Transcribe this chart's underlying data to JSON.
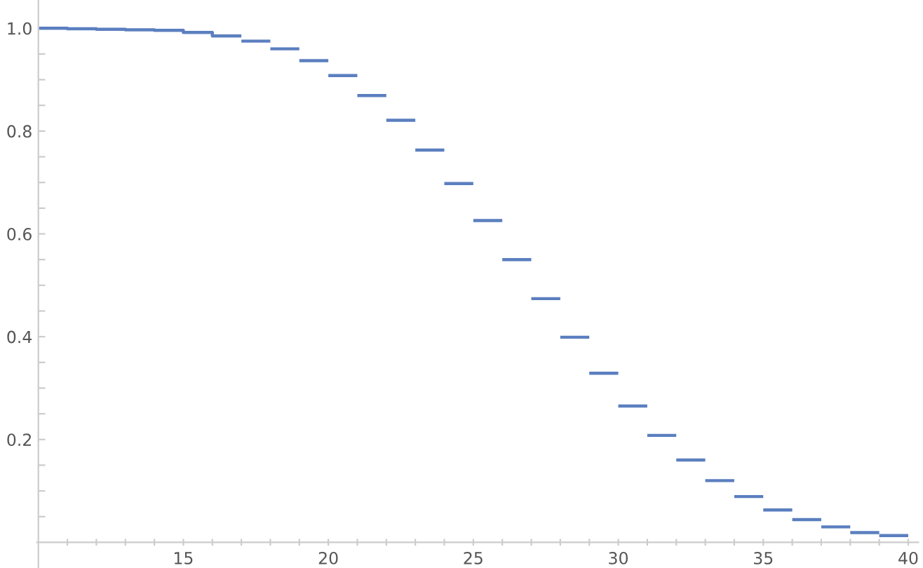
{
  "chart_data": {
    "type": "line",
    "series": [
      {
        "color": "#5b7fbf",
        "x": [
          10,
          11,
          11,
          12,
          12,
          13,
          13,
          14,
          14,
          15,
          15,
          16,
          16,
          17
        ],
        "values": [
          1.0,
          1.0,
          0.999,
          0.999,
          0.998,
          0.998,
          0.997,
          0.997,
          0.996,
          0.996,
          0.992,
          0.992,
          0.985,
          0.985
        ]
      },
      {
        "color": "#5b7fbf",
        "x": [
          17,
          18
        ],
        "values": [
          0.975,
          0.975
        ]
      },
      {
        "color": "#5b7fbf",
        "x": [
          18,
          19
        ],
        "values": [
          0.96,
          0.96
        ]
      },
      {
        "color": "#5b7fbf",
        "x": [
          19,
          20
        ],
        "values": [
          0.937,
          0.937
        ]
      },
      {
        "color": "#5b7fbf",
        "x": [
          20,
          21
        ],
        "values": [
          0.908,
          0.908
        ]
      },
      {
        "color": "#5b7fbf",
        "x": [
          21,
          22
        ],
        "values": [
          0.869,
          0.869
        ]
      },
      {
        "color": "#5b7fbf",
        "x": [
          22,
          23
        ],
        "values": [
          0.821,
          0.821
        ]
      },
      {
        "color": "#5b7fbf",
        "x": [
          23,
          24
        ],
        "values": [
          0.763,
          0.763
        ]
      },
      {
        "color": "#5b7fbf",
        "x": [
          24,
          25
        ],
        "values": [
          0.698,
          0.698
        ]
      },
      {
        "color": "#5b7fbf",
        "x": [
          25,
          26
        ],
        "values": [
          0.626,
          0.626
        ]
      },
      {
        "color": "#5b7fbf",
        "x": [
          26,
          27
        ],
        "values": [
          0.55,
          0.55
        ]
      },
      {
        "color": "#5b7fbf",
        "x": [
          27,
          28
        ],
        "values": [
          0.474,
          0.474
        ]
      },
      {
        "color": "#5b7fbf",
        "x": [
          28,
          29
        ],
        "values": [
          0.399,
          0.399
        ]
      },
      {
        "color": "#5b7fbf",
        "x": [
          29,
          30
        ],
        "values": [
          0.329,
          0.329
        ]
      },
      {
        "color": "#5b7fbf",
        "x": [
          30,
          31
        ],
        "values": [
          0.265,
          0.265
        ]
      },
      {
        "color": "#5b7fbf",
        "x": [
          31,
          32
        ],
        "values": [
          0.208,
          0.208
        ]
      },
      {
        "color": "#5b7fbf",
        "x": [
          32,
          33
        ],
        "values": [
          0.16,
          0.16
        ]
      },
      {
        "color": "#5b7fbf",
        "x": [
          33,
          34
        ],
        "values": [
          0.12,
          0.12
        ]
      },
      {
        "color": "#5b7fbf",
        "x": [
          34,
          35
        ],
        "values": [
          0.089,
          0.089
        ]
      },
      {
        "color": "#5b7fbf",
        "x": [
          35,
          36
        ],
        "values": [
          0.063,
          0.063
        ]
      },
      {
        "color": "#5b7fbf",
        "x": [
          36,
          37
        ],
        "values": [
          0.044,
          0.044
        ]
      },
      {
        "color": "#5b7fbf",
        "x": [
          37,
          38
        ],
        "values": [
          0.03,
          0.03
        ]
      },
      {
        "color": "#5b7fbf",
        "x": [
          38,
          39
        ],
        "values": [
          0.019,
          0.019
        ]
      },
      {
        "color": "#5b7fbf",
        "x": [
          39,
          40
        ],
        "values": [
          0.013,
          0.013
        ]
      }
    ],
    "xlim": [
      9.95,
      40.35
    ],
    "ylim": [
      -0.05,
      1.055
    ],
    "xticks": [
      {
        "value": 11,
        "label": null
      },
      {
        "value": 12,
        "label": null
      },
      {
        "value": 13,
        "label": null
      },
      {
        "value": 14,
        "label": null
      },
      15,
      {
        "value": 16,
        "label": null
      },
      {
        "value": 17,
        "label": null
      },
      {
        "value": 18,
        "label": null
      },
      {
        "value": 19,
        "label": null
      },
      20,
      {
        "value": 21,
        "label": null
      },
      {
        "value": 22,
        "label": null
      },
      {
        "value": 23,
        "label": null
      },
      {
        "value": 24,
        "label": null
      },
      25,
      {
        "value": 26,
        "label": null
      },
      {
        "value": 27,
        "label": null
      },
      {
        "value": 28,
        "label": null
      },
      {
        "value": 29,
        "label": null
      },
      30,
      {
        "value": 31,
        "label": null
      },
      {
        "value": 32,
        "label": null
      },
      {
        "value": 33,
        "label": null
      },
      {
        "value": 34,
        "label": null
      },
      35,
      {
        "value": 36,
        "label": null
      },
      {
        "value": 37,
        "label": null
      },
      {
        "value": 38,
        "label": null
      },
      {
        "value": 39,
        "label": null
      },
      40
    ],
    "yticks": [
      {
        "value": 0.05,
        "label": null
      },
      {
        "value": 0.1,
        "label": null
      },
      {
        "value": 0.15,
        "label": null
      },
      0.2,
      {
        "value": 0.25,
        "label": null
      },
      {
        "value": 0.3,
        "label": null
      },
      {
        "value": 0.35,
        "label": null
      },
      0.4,
      {
        "value": 0.45,
        "label": null
      },
      {
        "value": 0.5,
        "label": null
      },
      {
        "value": 0.55,
        "label": null
      },
      0.6,
      {
        "value": 0.65,
        "label": null
      },
      {
        "value": 0.7,
        "label": null
      },
      {
        "value": 0.75,
        "label": null
      },
      0.8,
      {
        "value": 0.85,
        "label": null
      },
      {
        "value": 0.9,
        "label": null
      },
      {
        "value": 0.95,
        "label": null
      },
      {
        "value": 1.0,
        "label": "1.0"
      }
    ],
    "grid": false,
    "legend": false
  }
}
